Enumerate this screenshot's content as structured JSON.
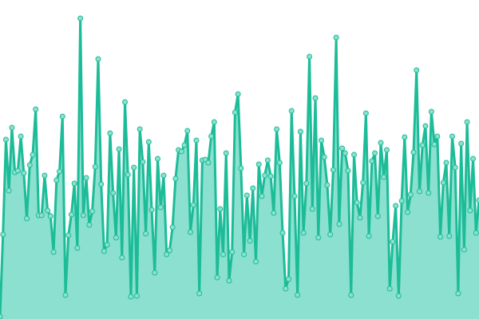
{
  "chart_data": {
    "type": "area",
    "markers": true,
    "grid": false,
    "axes_visible": false,
    "ylim": [
      0,
      400
    ],
    "colors": {
      "line": "#1dbc98",
      "fill": "#8be0cf",
      "marker_fill": "#8be0cf",
      "marker_stroke": "#1dbc98"
    },
    "values": [
      3,
      106,
      225,
      161,
      240,
      184,
      186,
      229,
      183,
      126,
      193,
      206,
      263,
      130,
      130,
      180,
      136,
      129,
      84,
      174,
      185,
      254,
      30,
      105,
      131,
      170,
      89,
      377,
      130,
      177,
      118,
      135,
      191,
      326,
      169,
      85,
      93,
      233,
      158,
      102,
      213,
      77,
      272,
      181,
      28,
      190,
      29,
      238,
      197,
      107,
      222,
      137,
      58,
      201,
      140,
      180,
      81,
      86,
      115,
      176,
      212,
      210,
      218,
      236,
      109,
      143,
      224,
      32,
      199,
      200,
      196,
      229,
      247,
      52,
      138,
      81,
      208,
      48,
      84,
      259,
      282,
      189,
      81,
      155,
      98,
      164,
      72,
      194,
      154,
      180,
      199,
      179,
      133,
      238,
      196,
      108,
      38,
      50,
      261,
      154,
      30,
      235,
      108,
      170,
      329,
      138,
      277,
      102,
      224,
      203,
      168,
      106,
      187,
      353,
      119,
      214,
      208,
      186,
      30,
      206,
      146,
      127,
      171,
      258,
      104,
      198,
      208,
      129,
      221,
      178,
      212,
      38,
      97,
      142,
      29,
      148,
      228,
      134,
      156,
      209,
      312,
      160,
      218,
      242,
      158,
      260,
      219,
      229,
      103,
      171,
      196,
      104,
      229,
      190,
      32,
      220,
      87,
      247,
      136,
      201,
      108,
      149
    ]
  }
}
